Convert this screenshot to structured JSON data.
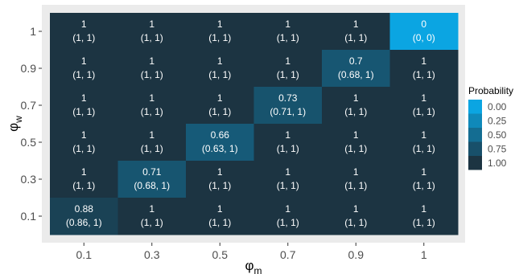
{
  "chart_data": {
    "type": "heatmap",
    "title": "",
    "xlabel": "φm",
    "ylabel": "φw",
    "x_categories": [
      "0.1",
      "0.3",
      "0.5",
      "0.7",
      "0.9",
      "1"
    ],
    "y_categories": [
      "0.1",
      "0.3",
      "0.5",
      "0.7",
      "0.9",
      "1"
    ],
    "cells": [
      {
        "x": "0.1",
        "y": "1",
        "value": 1,
        "label": "1",
        "interval": "(1, 1)"
      },
      {
        "x": "0.3",
        "y": "1",
        "value": 1,
        "label": "1",
        "interval": "(1, 1)"
      },
      {
        "x": "0.5",
        "y": "1",
        "value": 1,
        "label": "1",
        "interval": "(1, 1)"
      },
      {
        "x": "0.7",
        "y": "1",
        "value": 1,
        "label": "1",
        "interval": "(1, 1)"
      },
      {
        "x": "0.9",
        "y": "1",
        "value": 1,
        "label": "1",
        "interval": "(1, 1)"
      },
      {
        "x": "1",
        "y": "1",
        "value": 0,
        "label": "0",
        "interval": "(0, 0)"
      },
      {
        "x": "0.1",
        "y": "0.9",
        "value": 1,
        "label": "1",
        "interval": "(1, 1)"
      },
      {
        "x": "0.3",
        "y": "0.9",
        "value": 1,
        "label": "1",
        "interval": "(1, 1)"
      },
      {
        "x": "0.5",
        "y": "0.9",
        "value": 1,
        "label": "1",
        "interval": "(1, 1)"
      },
      {
        "x": "0.7",
        "y": "0.9",
        "value": 1,
        "label": "1",
        "interval": "(1, 1)"
      },
      {
        "x": "0.9",
        "y": "0.9",
        "value": 0.7,
        "label": "0.7",
        "interval": "(0.68, 1)"
      },
      {
        "x": "1",
        "y": "0.9",
        "value": 1,
        "label": "1",
        "interval": "(1, 1)"
      },
      {
        "x": "0.1",
        "y": "0.7",
        "value": 1,
        "label": "1",
        "interval": "(1, 1)"
      },
      {
        "x": "0.3",
        "y": "0.7",
        "value": 1,
        "label": "1",
        "interval": "(1, 1)"
      },
      {
        "x": "0.5",
        "y": "0.7",
        "value": 1,
        "label": "1",
        "interval": "(1, 1)"
      },
      {
        "x": "0.7",
        "y": "0.7",
        "value": 0.73,
        "label": "0.73",
        "interval": "(0.71, 1)"
      },
      {
        "x": "0.9",
        "y": "0.7",
        "value": 1,
        "label": "1",
        "interval": "(1, 1)"
      },
      {
        "x": "1",
        "y": "0.7",
        "value": 1,
        "label": "1",
        "interval": "(1, 1)"
      },
      {
        "x": "0.1",
        "y": "0.5",
        "value": 1,
        "label": "1",
        "interval": "(1, 1)"
      },
      {
        "x": "0.3",
        "y": "0.5",
        "value": 1,
        "label": "1",
        "interval": "(1, 1)"
      },
      {
        "x": "0.5",
        "y": "0.5",
        "value": 0.66,
        "label": "0.66",
        "interval": "(0.63, 1)"
      },
      {
        "x": "0.7",
        "y": "0.5",
        "value": 1,
        "label": "1",
        "interval": "(1, 1)"
      },
      {
        "x": "0.9",
        "y": "0.5",
        "value": 1,
        "label": "1",
        "interval": "(1, 1)"
      },
      {
        "x": "1",
        "y": "0.5",
        "value": 1,
        "label": "1",
        "interval": "(1, 1)"
      },
      {
        "x": "0.1",
        "y": "0.3",
        "value": 1,
        "label": "1",
        "interval": "(1, 1)"
      },
      {
        "x": "0.3",
        "y": "0.3",
        "value": 0.71,
        "label": "0.71",
        "interval": "(0.68, 1)"
      },
      {
        "x": "0.5",
        "y": "0.3",
        "value": 1,
        "label": "1",
        "interval": "(1, 1)"
      },
      {
        "x": "0.7",
        "y": "0.3",
        "value": 1,
        "label": "1",
        "interval": "(1, 1)"
      },
      {
        "x": "0.9",
        "y": "0.3",
        "value": 1,
        "label": "1",
        "interval": "(1, 1)"
      },
      {
        "x": "1",
        "y": "0.3",
        "value": 1,
        "label": "1",
        "interval": "(1, 1)"
      },
      {
        "x": "0.1",
        "y": "0.1",
        "value": 0.88,
        "label": "0.88",
        "interval": "(0.86, 1)"
      },
      {
        "x": "0.3",
        "y": "0.1",
        "value": 1,
        "label": "1",
        "interval": "(1, 1)"
      },
      {
        "x": "0.5",
        "y": "0.1",
        "value": 1,
        "label": "1",
        "interval": "(1, 1)"
      },
      {
        "x": "0.7",
        "y": "0.1",
        "value": 1,
        "label": "1",
        "interval": "(1, 1)"
      },
      {
        "x": "0.9",
        "y": "0.1",
        "value": 1,
        "label": "1",
        "interval": "(1, 1)"
      },
      {
        "x": "1",
        "y": "0.1",
        "value": 1,
        "label": "1",
        "interval": "(1, 1)"
      }
    ],
    "legend": {
      "title": "Probability",
      "placement": "right",
      "ticks": [
        "0.00",
        "0.25",
        "0.50",
        "0.75",
        "1.00"
      ],
      "tick_values": [
        0,
        0.25,
        0.5,
        0.75,
        1
      ]
    },
    "color_scale": {
      "low": "#0ba5e2",
      "high": "#1c3442"
    },
    "panel_background": "#ebebeb"
  }
}
